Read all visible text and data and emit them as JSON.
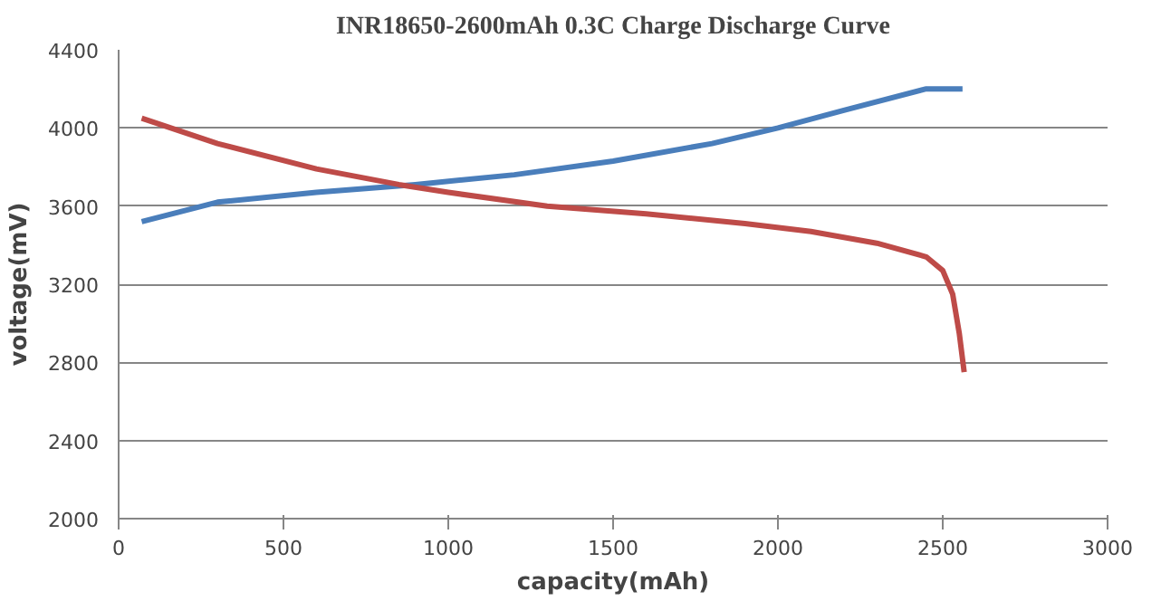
{
  "chart_data": {
    "type": "line",
    "title": "INR18650-2600mAh 0.3C Charge Discharge Curve",
    "xlabel": "capacity(mAh)",
    "ylabel": "voltage(mV)",
    "xlim": [
      0,
      3000
    ],
    "xticks": [
      0,
      500,
      1000,
      1500,
      2000,
      2500,
      3000
    ],
    "ylim": [
      2000,
      4400
    ],
    "yticks": [
      2000,
      2400,
      2800,
      3200,
      3600,
      4000,
      4400
    ],
    "grid": "y",
    "series": [
      {
        "color": "#4a7ebb",
        "x": [
          70,
          300,
          600,
          900,
          1200,
          1500,
          1800,
          2000,
          2200,
          2450,
          2560
        ],
        "values": [
          3520,
          3620,
          3670,
          3710,
          3760,
          3830,
          3920,
          4000,
          4090,
          4200,
          4200
        ]
      },
      {
        "color": "#be4b48",
        "x": [
          70,
          300,
          600,
          850,
          1000,
          1300,
          1600,
          1900,
          2100,
          2300,
          2450,
          2500,
          2530,
          2550,
          2565
        ],
        "values": [
          4050,
          3920,
          3790,
          3710,
          3670,
          3600,
          3560,
          3510,
          3470,
          3410,
          3340,
          3270,
          3150,
          2950,
          2750
        ]
      }
    ]
  }
}
